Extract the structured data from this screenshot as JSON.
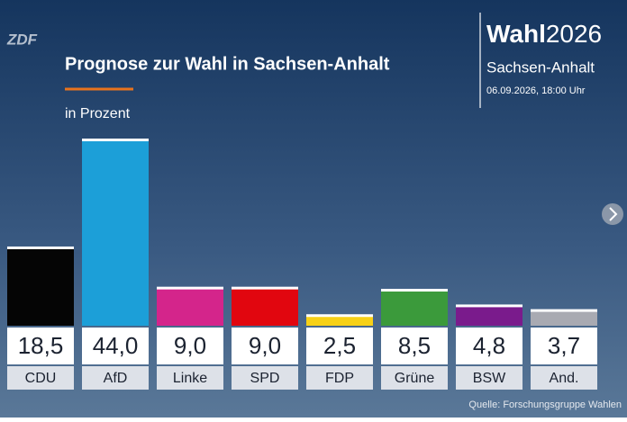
{
  "branding": {
    "logo": "ZDF",
    "wordmark": "Wahl",
    "year": "2026",
    "region": "Sachsen-Anhalt",
    "datetime": "06.09.2026, 18:00 Uhr"
  },
  "source": "Quelle: Forschungsgruppe Wahlen",
  "chart_data": {
    "type": "bar",
    "title": "Prognose zur Wahl in Sachsen-Anhalt",
    "subtitle": "in Prozent",
    "categories": [
      "CDU",
      "AfD",
      "Linke",
      "SPD",
      "FDP",
      "Grüne",
      "BSW",
      "And."
    ],
    "values": [
      18.5,
      44.0,
      9.0,
      9.0,
      2.5,
      8.5,
      4.8,
      3.7
    ],
    "value_labels": [
      "18,5",
      "44,0",
      "9,0",
      "9,0",
      "2,5",
      "8,5",
      "4,8",
      "3,7"
    ],
    "colors": [
      "#050505",
      "#1c9fd8",
      "#d4258b",
      "#e1060f",
      "#f7d117",
      "#3b9a3b",
      "#7a1b8c",
      "#a9aab2"
    ]
  }
}
